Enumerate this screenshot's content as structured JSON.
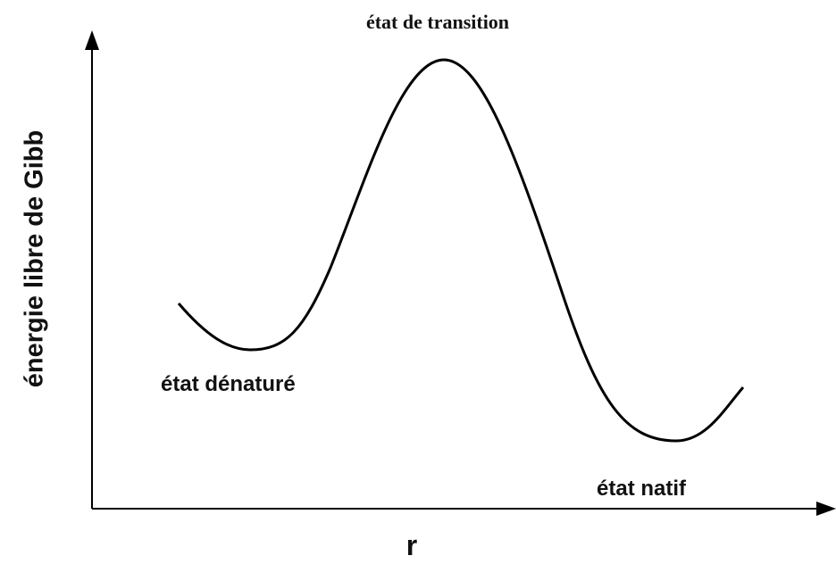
{
  "diagram": {
    "y_axis_label": "énergie libre de Gibb",
    "x_axis_label": "r",
    "annotations": [
      "état de transition",
      "état dénaturé",
      "état natif"
    ]
  }
}
